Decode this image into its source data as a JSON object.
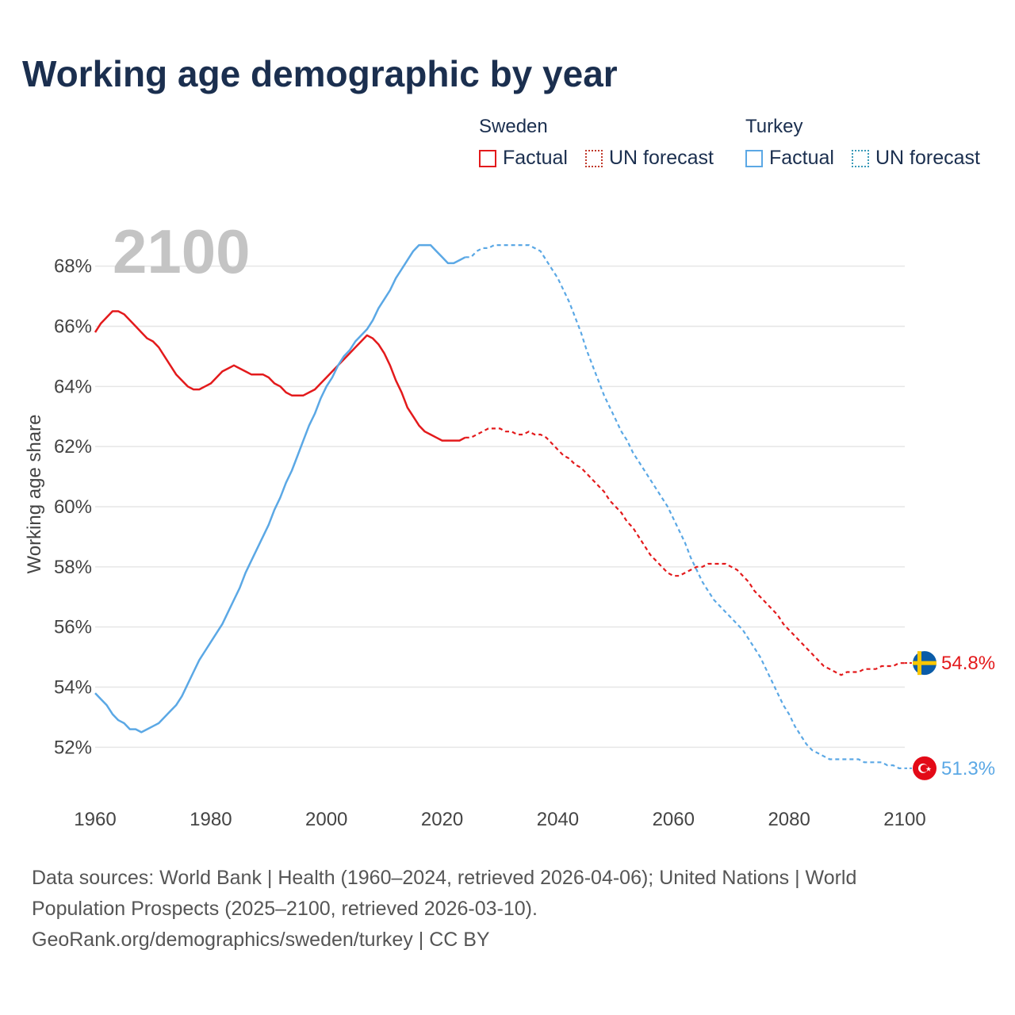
{
  "title": "Working age demographic by year",
  "legend": {
    "groups": [
      {
        "name": "Sweden",
        "factual": "Factual",
        "forecast": "UN forecast"
      },
      {
        "name": "Turkey",
        "factual": "Factual",
        "forecast": "UN forecast"
      }
    ]
  },
  "sources": {
    "line1": "Data sources: World Bank | Health (1960–2024, retrieved 2026-04-06); United Nations | World",
    "line2": "Population Prospects (2025–2100, retrieved 2026-03-10).",
    "line3": "GeoRank.org/demographics/sweden/turkey | CC BY"
  },
  "colors": {
    "sweden": "#e31a1c",
    "turkey": "#5ba8e5",
    "grid": "#e6e6e6",
    "title": "#1b2f4f"
  },
  "chart_data": {
    "type": "line",
    "title": "Working age demographic by year",
    "ylabel": "Working age share",
    "xlabel": "",
    "year_label": "2100",
    "xlim": [
      1960,
      2100
    ],
    "ylim": [
      50.4,
      69.6
    ],
    "yticks": [
      "52%",
      "54%",
      "56%",
      "58%",
      "60%",
      "62%",
      "64%",
      "66%",
      "68%"
    ],
    "ytick_values": [
      52,
      54,
      56,
      58,
      60,
      62,
      64,
      66,
      68
    ],
    "xticks": [
      "1960",
      "1980",
      "2000",
      "2020",
      "2040",
      "2060",
      "2080",
      "2100"
    ],
    "xtick_values": [
      1960,
      1980,
      2000,
      2020,
      2040,
      2060,
      2080,
      2100
    ],
    "factual_end_year": 2024,
    "series": [
      {
        "name": "Sweden",
        "color": "#e31a1c",
        "end_label": "54.8%",
        "flag": "sweden-flag",
        "points": [
          [
            1960,
            65.8
          ],
          [
            1961,
            66.1
          ],
          [
            1962,
            66.3
          ],
          [
            1963,
            66.5
          ],
          [
            1964,
            66.5
          ],
          [
            1965,
            66.4
          ],
          [
            1966,
            66.2
          ],
          [
            1967,
            66.0
          ],
          [
            1968,
            65.8
          ],
          [
            1969,
            65.6
          ],
          [
            1970,
            65.5
          ],
          [
            1971,
            65.3
          ],
          [
            1972,
            65.0
          ],
          [
            1973,
            64.7
          ],
          [
            1974,
            64.4
          ],
          [
            1975,
            64.2
          ],
          [
            1976,
            64.0
          ],
          [
            1977,
            63.9
          ],
          [
            1978,
            63.9
          ],
          [
            1979,
            64.0
          ],
          [
            1980,
            64.1
          ],
          [
            1981,
            64.3
          ],
          [
            1982,
            64.5
          ],
          [
            1983,
            64.6
          ],
          [
            1984,
            64.7
          ],
          [
            1985,
            64.6
          ],
          [
            1986,
            64.5
          ],
          [
            1987,
            64.4
          ],
          [
            1988,
            64.4
          ],
          [
            1989,
            64.4
          ],
          [
            1990,
            64.3
          ],
          [
            1991,
            64.1
          ],
          [
            1992,
            64.0
          ],
          [
            1993,
            63.8
          ],
          [
            1994,
            63.7
          ],
          [
            1995,
            63.7
          ],
          [
            1996,
            63.7
          ],
          [
            1997,
            63.8
          ],
          [
            1998,
            63.9
          ],
          [
            1999,
            64.1
          ],
          [
            2000,
            64.3
          ],
          [
            2001,
            64.5
          ],
          [
            2002,
            64.7
          ],
          [
            2003,
            64.9
          ],
          [
            2004,
            65.1
          ],
          [
            2005,
            65.3
          ],
          [
            2006,
            65.5
          ],
          [
            2007,
            65.7
          ],
          [
            2008,
            65.6
          ],
          [
            2009,
            65.4
          ],
          [
            2010,
            65.1
          ],
          [
            2011,
            64.7
          ],
          [
            2012,
            64.2
          ],
          [
            2013,
            63.8
          ],
          [
            2014,
            63.3
          ],
          [
            2015,
            63.0
          ],
          [
            2016,
            62.7
          ],
          [
            2017,
            62.5
          ],
          [
            2018,
            62.4
          ],
          [
            2019,
            62.3
          ],
          [
            2020,
            62.2
          ],
          [
            2021,
            62.2
          ],
          [
            2022,
            62.2
          ],
          [
            2023,
            62.2
          ],
          [
            2024,
            62.3
          ],
          [
            2025,
            62.3
          ],
          [
            2026,
            62.4
          ],
          [
            2027,
            62.5
          ],
          [
            2028,
            62.6
          ],
          [
            2029,
            62.6
          ],
          [
            2030,
            62.6
          ],
          [
            2031,
            62.5
          ],
          [
            2032,
            62.5
          ],
          [
            2033,
            62.4
          ],
          [
            2034,
            62.4
          ],
          [
            2035,
            62.5
          ],
          [
            2036,
            62.4
          ],
          [
            2037,
            62.4
          ],
          [
            2038,
            62.3
          ],
          [
            2039,
            62.1
          ],
          [
            2040,
            61.9
          ],
          [
            2041,
            61.7
          ],
          [
            2042,
            61.6
          ],
          [
            2043,
            61.4
          ],
          [
            2044,
            61.3
          ],
          [
            2045,
            61.1
          ],
          [
            2046,
            60.9
          ],
          [
            2047,
            60.7
          ],
          [
            2048,
            60.5
          ],
          [
            2049,
            60.2
          ],
          [
            2050,
            60.0
          ],
          [
            2051,
            59.8
          ],
          [
            2052,
            59.5
          ],
          [
            2053,
            59.3
          ],
          [
            2054,
            59.0
          ],
          [
            2055,
            58.7
          ],
          [
            2056,
            58.4
          ],
          [
            2057,
            58.2
          ],
          [
            2058,
            58.0
          ],
          [
            2059,
            57.8
          ],
          [
            2060,
            57.7
          ],
          [
            2061,
            57.7
          ],
          [
            2062,
            57.8
          ],
          [
            2063,
            57.9
          ],
          [
            2064,
            58.0
          ],
          [
            2065,
            58.0
          ],
          [
            2066,
            58.1
          ],
          [
            2067,
            58.1
          ],
          [
            2068,
            58.1
          ],
          [
            2069,
            58.1
          ],
          [
            2070,
            58.0
          ],
          [
            2071,
            57.9
          ],
          [
            2072,
            57.7
          ],
          [
            2073,
            57.5
          ],
          [
            2074,
            57.2
          ],
          [
            2075,
            57.0
          ],
          [
            2076,
            56.8
          ],
          [
            2077,
            56.6
          ],
          [
            2078,
            56.4
          ],
          [
            2079,
            56.1
          ],
          [
            2080,
            55.9
          ],
          [
            2081,
            55.7
          ],
          [
            2082,
            55.5
          ],
          [
            2083,
            55.3
          ],
          [
            2084,
            55.1
          ],
          [
            2085,
            54.9
          ],
          [
            2086,
            54.7
          ],
          [
            2087,
            54.6
          ],
          [
            2088,
            54.5
          ],
          [
            2089,
            54.4
          ],
          [
            2090,
            54.5
          ],
          [
            2091,
            54.5
          ],
          [
            2092,
            54.5
          ],
          [
            2093,
            54.6
          ],
          [
            2094,
            54.6
          ],
          [
            2095,
            54.6
          ],
          [
            2096,
            54.7
          ],
          [
            2097,
            54.7
          ],
          [
            2098,
            54.7
          ],
          [
            2099,
            54.8
          ],
          [
            2100,
            54.8
          ]
        ]
      },
      {
        "name": "Turkey",
        "color": "#5ba8e5",
        "end_label": "51.3%",
        "flag": "turkey-flag",
        "points": [
          [
            1960,
            53.8
          ],
          [
            1961,
            53.6
          ],
          [
            1962,
            53.4
          ],
          [
            1963,
            53.1
          ],
          [
            1964,
            52.9
          ],
          [
            1965,
            52.8
          ],
          [
            1966,
            52.6
          ],
          [
            1967,
            52.6
          ],
          [
            1968,
            52.5
          ],
          [
            1969,
            52.6
          ],
          [
            1970,
            52.7
          ],
          [
            1971,
            52.8
          ],
          [
            1972,
            53.0
          ],
          [
            1973,
            53.2
          ],
          [
            1974,
            53.4
          ],
          [
            1975,
            53.7
          ],
          [
            1976,
            54.1
          ],
          [
            1977,
            54.5
          ],
          [
            1978,
            54.9
          ],
          [
            1979,
            55.2
          ],
          [
            1980,
            55.5
          ],
          [
            1981,
            55.8
          ],
          [
            1982,
            56.1
          ],
          [
            1983,
            56.5
          ],
          [
            1984,
            56.9
          ],
          [
            1985,
            57.3
          ],
          [
            1986,
            57.8
          ],
          [
            1987,
            58.2
          ],
          [
            1988,
            58.6
          ],
          [
            1989,
            59.0
          ],
          [
            1990,
            59.4
          ],
          [
            1991,
            59.9
          ],
          [
            1992,
            60.3
          ],
          [
            1993,
            60.8
          ],
          [
            1994,
            61.2
          ],
          [
            1995,
            61.7
          ],
          [
            1996,
            62.2
          ],
          [
            1997,
            62.7
          ],
          [
            1998,
            63.1
          ],
          [
            1999,
            63.6
          ],
          [
            2000,
            64.0
          ],
          [
            2001,
            64.3
          ],
          [
            2002,
            64.7
          ],
          [
            2003,
            65.0
          ],
          [
            2004,
            65.2
          ],
          [
            2005,
            65.5
          ],
          [
            2006,
            65.7
          ],
          [
            2007,
            65.9
          ],
          [
            2008,
            66.2
          ],
          [
            2009,
            66.6
          ],
          [
            2010,
            66.9
          ],
          [
            2011,
            67.2
          ],
          [
            2012,
            67.6
          ],
          [
            2013,
            67.9
          ],
          [
            2014,
            68.2
          ],
          [
            2015,
            68.5
          ],
          [
            2016,
            68.7
          ],
          [
            2017,
            68.7
          ],
          [
            2018,
            68.7
          ],
          [
            2019,
            68.5
          ],
          [
            2020,
            68.3
          ],
          [
            2021,
            68.1
          ],
          [
            2022,
            68.1
          ],
          [
            2023,
            68.2
          ],
          [
            2024,
            68.3
          ],
          [
            2025,
            68.3
          ],
          [
            2026,
            68.5
          ],
          [
            2027,
            68.6
          ],
          [
            2028,
            68.6
          ],
          [
            2029,
            68.7
          ],
          [
            2030,
            68.7
          ],
          [
            2031,
            68.7
          ],
          [
            2032,
            68.7
          ],
          [
            2033,
            68.7
          ],
          [
            2034,
            68.7
          ],
          [
            2035,
            68.7
          ],
          [
            2036,
            68.6
          ],
          [
            2037,
            68.5
          ],
          [
            2038,
            68.2
          ],
          [
            2039,
            67.9
          ],
          [
            2040,
            67.6
          ],
          [
            2041,
            67.2
          ],
          [
            2042,
            66.8
          ],
          [
            2043,
            66.3
          ],
          [
            2044,
            65.8
          ],
          [
            2045,
            65.2
          ],
          [
            2046,
            64.7
          ],
          [
            2047,
            64.2
          ],
          [
            2048,
            63.7
          ],
          [
            2049,
            63.3
          ],
          [
            2050,
            62.9
          ],
          [
            2051,
            62.5
          ],
          [
            2052,
            62.2
          ],
          [
            2053,
            61.8
          ],
          [
            2054,
            61.5
          ],
          [
            2055,
            61.2
          ],
          [
            2056,
            60.9
          ],
          [
            2057,
            60.6
          ],
          [
            2058,
            60.3
          ],
          [
            2059,
            60.0
          ],
          [
            2060,
            59.6
          ],
          [
            2061,
            59.2
          ],
          [
            2062,
            58.8
          ],
          [
            2063,
            58.3
          ],
          [
            2064,
            57.9
          ],
          [
            2065,
            57.5
          ],
          [
            2066,
            57.2
          ],
          [
            2067,
            56.9
          ],
          [
            2068,
            56.7
          ],
          [
            2069,
            56.5
          ],
          [
            2070,
            56.3
          ],
          [
            2071,
            56.1
          ],
          [
            2072,
            55.9
          ],
          [
            2073,
            55.6
          ],
          [
            2074,
            55.3
          ],
          [
            2075,
            55.0
          ],
          [
            2076,
            54.6
          ],
          [
            2077,
            54.2
          ],
          [
            2078,
            53.8
          ],
          [
            2079,
            53.4
          ],
          [
            2080,
            53.1
          ],
          [
            2081,
            52.7
          ],
          [
            2082,
            52.4
          ],
          [
            2083,
            52.1
          ],
          [
            2084,
            51.9
          ],
          [
            2085,
            51.8
          ],
          [
            2086,
            51.7
          ],
          [
            2087,
            51.6
          ],
          [
            2088,
            51.6
          ],
          [
            2089,
            51.6
          ],
          [
            2090,
            51.6
          ],
          [
            2091,
            51.6
          ],
          [
            2092,
            51.6
          ],
          [
            2093,
            51.5
          ],
          [
            2094,
            51.5
          ],
          [
            2095,
            51.5
          ],
          [
            2096,
            51.5
          ],
          [
            2097,
            51.4
          ],
          [
            2098,
            51.4
          ],
          [
            2099,
            51.3
          ],
          [
            2100,
            51.3
          ]
        ]
      }
    ]
  }
}
